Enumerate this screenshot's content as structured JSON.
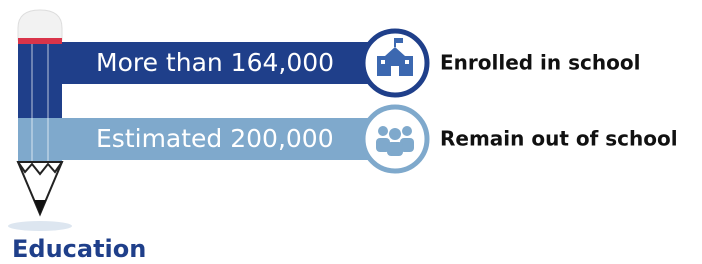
{
  "bars": [
    {
      "label": "More than 164,000",
      "caption": "Enrolled in school"
    },
    {
      "label": "Estimated 200,000",
      "caption": "Remain out of school"
    }
  ],
  "footer": "Education"
}
